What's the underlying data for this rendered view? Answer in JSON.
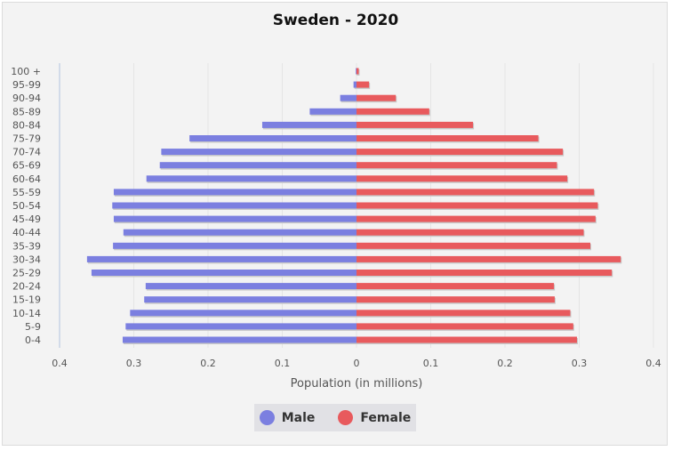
{
  "chart_data": {
    "type": "bar",
    "orientation": "horizontal",
    "title": "Sweden - 2020",
    "xlabel": "Population (in millions)",
    "xlim": [
      -0.4,
      0.4
    ],
    "x_ticks": [
      "0.4",
      "0.3",
      "0.2",
      "0.1",
      "0",
      "0.1",
      "0.2",
      "0.3",
      "0.4"
    ],
    "grid": true,
    "legend_position": "bottom-center",
    "categories": [
      "100 +",
      "95-99",
      "90-94",
      "85-89",
      "80-84",
      "75-79",
      "70-74",
      "65-69",
      "60-64",
      "55-59",
      "50-54",
      "45-49",
      "40-44",
      "35-39",
      "30-34",
      "25-29",
      "20-24",
      "15-19",
      "10-14",
      "5-9",
      "0-4"
    ],
    "series": [
      {
        "name": "Male",
        "color": "#7b7fe0",
        "values": [
          0.001,
          0.004,
          0.022,
          0.063,
          0.127,
          0.225,
          0.263,
          0.265,
          0.283,
          0.327,
          0.329,
          0.327,
          0.314,
          0.328,
          0.363,
          0.357,
          0.284,
          0.286,
          0.305,
          0.311,
          0.315
        ]
      },
      {
        "name": "Female",
        "color": "#e85a5d",
        "values": [
          0.003,
          0.017,
          0.053,
          0.098,
          0.157,
          0.245,
          0.278,
          0.27,
          0.284,
          0.32,
          0.325,
          0.322,
          0.306,
          0.315,
          0.356,
          0.344,
          0.266,
          0.267,
          0.288,
          0.292,
          0.297
        ]
      }
    ]
  }
}
